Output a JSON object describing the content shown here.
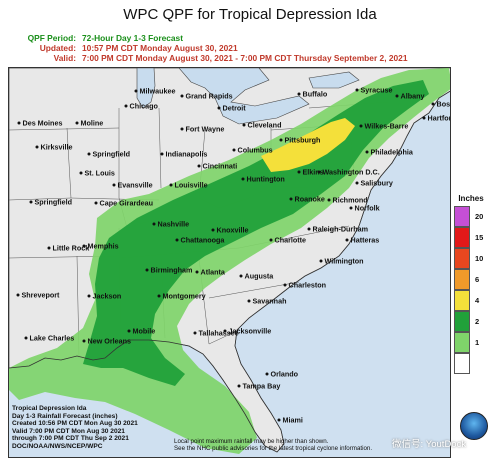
{
  "title": "WPC QPF for Tropical Depression Ida",
  "header": {
    "period_label": "QPF Period:",
    "period_value": "72-Hour Day 1-3 Forecast",
    "updated_label": "Updated:",
    "updated_value": "10:57 PM CDT Monday August 30, 2021",
    "valid_label": "Valid:",
    "valid_value": "7:00 PM CDT Monday August 30, 2021 - 7:00 PM CDT Thursday September 2, 2021"
  },
  "legend": {
    "title": "Inches",
    "levels": [
      {
        "label": "20",
        "color": "#c54fd5"
      },
      {
        "label": "15",
        "color": "#e21919"
      },
      {
        "label": "10",
        "color": "#e8471f"
      },
      {
        "label": "6",
        "color": "#f09a2a"
      },
      {
        "label": "4",
        "color": "#f4e03a"
      },
      {
        "label": "2",
        "color": "#21a13a"
      },
      {
        "label": "1",
        "color": "#7fd46a"
      },
      {
        "label": "",
        "color": "#ffffff"
      }
    ]
  },
  "cities": [
    {
      "name": "Milwaukee"
    },
    {
      "name": "Grand Rapids"
    },
    {
      "name": "Detroit"
    },
    {
      "name": "Buffalo"
    },
    {
      "name": "Syracuse"
    },
    {
      "name": "Albany"
    },
    {
      "name": "Boston"
    },
    {
      "name": "Hartford"
    },
    {
      "name": "Wilkes-Barre"
    },
    {
      "name": "Chicago"
    },
    {
      "name": "Des Moines"
    },
    {
      "name": "Moline"
    },
    {
      "name": "Fort Wayne"
    },
    {
      "name": "Cleveland"
    },
    {
      "name": "Pittsburgh"
    },
    {
      "name": "Kirksville"
    },
    {
      "name": "Springfield"
    },
    {
      "name": "Indianapolis"
    },
    {
      "name": "Columbus"
    },
    {
      "name": "Philadelphia"
    },
    {
      "name": "Cincinnati"
    },
    {
      "name": "Elkins"
    },
    {
      "name": "St. Louis"
    },
    {
      "name": "Washington D.C."
    },
    {
      "name": "Huntington"
    },
    {
      "name": "Salisbury"
    },
    {
      "name": "Evansville"
    },
    {
      "name": "Louisville"
    },
    {
      "name": "Springfield"
    },
    {
      "name": "Cape Girardeau"
    },
    {
      "name": "Roanoke"
    },
    {
      "name": "Richmond"
    },
    {
      "name": "Norfolk"
    },
    {
      "name": "Nashville"
    },
    {
      "name": "Knoxville"
    },
    {
      "name": "Raleigh-Durham"
    },
    {
      "name": "Little Rock"
    },
    {
      "name": "Memphis"
    },
    {
      "name": "Chattanooga"
    },
    {
      "name": "Charlotte"
    },
    {
      "name": "Hatteras"
    },
    {
      "name": "Wilmington"
    },
    {
      "name": "Birmingham"
    },
    {
      "name": "Atlanta"
    },
    {
      "name": "Augusta"
    },
    {
      "name": "Shreveport"
    },
    {
      "name": "Charleston"
    },
    {
      "name": "Jackson"
    },
    {
      "name": "Montgomery"
    },
    {
      "name": "Savannah"
    },
    {
      "name": "Mobile"
    },
    {
      "name": "Lake Charles"
    },
    {
      "name": "New Orleans"
    },
    {
      "name": "Tallahassee"
    },
    {
      "name": "Jacksonville"
    },
    {
      "name": "Orlando"
    },
    {
      "name": "Tampa Bay"
    },
    {
      "name": "Miami"
    }
  ],
  "info": {
    "line1": "Tropical Depression Ida",
    "line2": "Day 1-3 Rainfall Forecast (inches)",
    "line3": "Created 10:56 PM CDT Mon Aug 30 2021",
    "line4": "Valid 7:00 PM CDT Mon Aug 30 2021",
    "line5": "through 7:00 PM CDT Thu Sep 2 2021",
    "line6": "DOC/NOAA/NWS/NCEP/WPC"
  },
  "note": {
    "line1": "Local point maximum rainfall may be higher than shown.",
    "line2": "See the NHC public advisories for the latest tropical cyclone information."
  },
  "watermark": "微信号: YoutDock",
  "colors": {
    "land": "#e8e8e8",
    "water": "#cfe0f0",
    "lakes": "#c8dcee",
    "borders": "#444444"
  }
}
